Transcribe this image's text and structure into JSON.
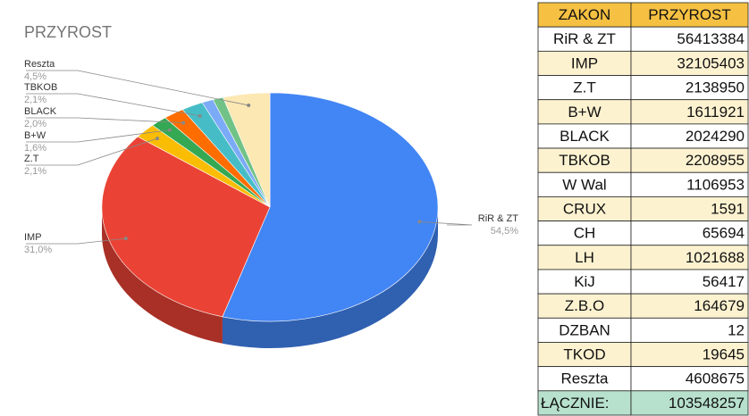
{
  "chart_data": {
    "type": "pie3d",
    "title": "PRZYROST",
    "categories": [
      "RiR & ZT",
      "IMP",
      "Z.T",
      "B+W",
      "BLACK",
      "TBKOB",
      null,
      null,
      "Reszta"
    ],
    "values": [
      54.5,
      31.0,
      2.1,
      1.6,
      2.0,
      2.1,
      1.1,
      1.0,
      4.5
    ],
    "value_labels": [
      "54,5%",
      "31,0%",
      "2,1%",
      "1,6%",
      "2,0%",
      "2,1%",
      null,
      null,
      "4,5%"
    ],
    "colors": [
      "#4285f4",
      "#ea4335",
      "#fbbc04",
      "#34a853",
      "#ff6d01",
      "#46bdc6",
      "#7baaf7",
      "#71c287",
      "#fce8b2"
    ]
  },
  "table": {
    "header": [
      "ZAKON",
      "PRZYROST"
    ],
    "rows": [
      [
        "RiR & ZT",
        56413384
      ],
      [
        "IMP",
        32105403
      ],
      [
        "Z.T",
        2138950
      ],
      [
        "B+W",
        1611921
      ],
      [
        "BLACK",
        2024290
      ],
      [
        "TBKOB",
        2208955
      ],
      [
        "W Wal",
        1106953
      ],
      [
        "CRUX",
        1591
      ],
      [
        "CH",
        65694
      ],
      [
        "LH",
        1021688
      ],
      [
        "KiJ",
        56417
      ],
      [
        "Z.B.O",
        164679
      ],
      [
        "DZBAN",
        12
      ],
      [
        "TKOD",
        19645
      ],
      [
        "Reszta",
        4608675
      ]
    ],
    "total": [
      "ŁĄCZNIE:",
      103548257
    ]
  }
}
